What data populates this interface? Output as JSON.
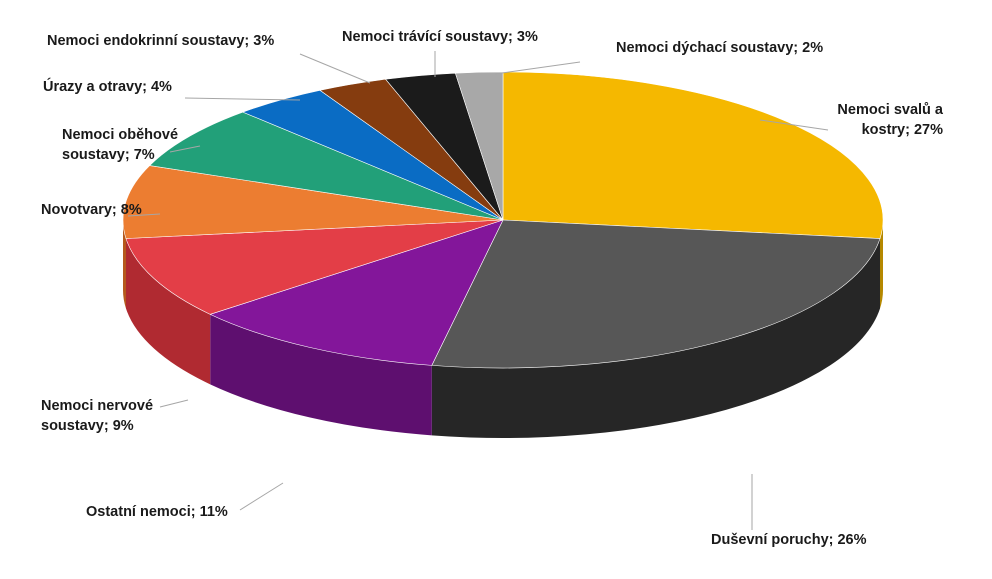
{
  "chart_data": {
    "type": "pie",
    "title": "",
    "labels_format": "{name}; {pct}%",
    "slices": [
      {
        "name": "Nemoci svalů a kostry",
        "lines": [
          "Nemoci svalů a",
          "kostry; 27%"
        ],
        "value": 27,
        "color": "#F5B800",
        "side_color": "#B58800"
      },
      {
        "name": "Duševní poruchy",
        "lines": [
          "Duševní poruchy; 26%"
        ],
        "value": 26,
        "color": "#575757",
        "side_color": "#262626"
      },
      {
        "name": "Ostatní nemoci",
        "lines": [
          "Ostatní nemoci; 11%"
        ],
        "value": 11,
        "color": "#83169A",
        "side_color": "#5E0F6F"
      },
      {
        "name": "Nemoci nervové soustavy",
        "lines": [
          "Nemoci nervové",
          "soustavy; 9%"
        ],
        "value": 9,
        "color": "#E33E47",
        "side_color": "#B02A31"
      },
      {
        "name": "Novotvary",
        "lines": [
          "Novotvary; 8%"
        ],
        "value": 8,
        "color": "#EC7D31",
        "side_color": "#B5591D"
      },
      {
        "name": "Nemoci oběhové soustavy",
        "lines": [
          "Nemoci oběhové",
          "soustavy; 7%"
        ],
        "value": 7,
        "color": "#22A079",
        "side_color": "#167355"
      },
      {
        "name": "Úrazy a otravy",
        "lines": [
          "Úrazy a otravy; 4%"
        ],
        "value": 4,
        "color": "#0A6CC4",
        "side_color": "#064D8C"
      },
      {
        "name": "Nemoci endokrinní soustavy",
        "lines": [
          "Nemoci endokrinní soustavy; 3%"
        ],
        "value": 3,
        "color": "#853C0F",
        "side_color": "#5A280A"
      },
      {
        "name": "Nemoci trávící soustavy",
        "lines": [
          "Nemoci trávící soustavy; 3%"
        ],
        "value": 3,
        "color": "#1B1B1B",
        "side_color": "#0A0A0A"
      },
      {
        "name": "Nemoci dýchací soustavy",
        "lines": [
          "Nemoci dýchací soustavy; 2%"
        ],
        "value": 2,
        "color": "#A8A8A8",
        "side_color": "#7A7A7A"
      }
    ]
  }
}
